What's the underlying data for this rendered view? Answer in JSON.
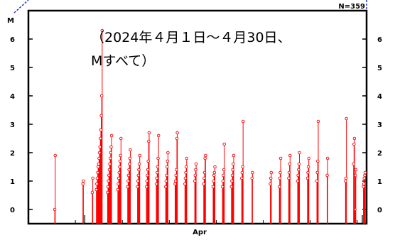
{
  "chart_data": {
    "type": "scatter",
    "style": "stem",
    "title": "",
    "annotation_lines": [
      "（2024年４月１日～４月30日、",
      "Mすべて）"
    ],
    "ylabel": "M",
    "count_label": "N=359",
    "ylim": [
      -0.5,
      7.0
    ],
    "yticks": [
      "0",
      "1",
      "2",
      "3",
      "4",
      "5",
      "6"
    ],
    "x_tick_label": "Apr",
    "xlim": [
      "2024-03-26",
      "2024-05-01"
    ],
    "grid": false,
    "series": [
      {
        "color": "#ff0000",
        "points": [
          [
            "2024-03-28",
            1.9
          ],
          [
            "2024-03-28",
            0.0
          ],
          [
            "2024-03-31",
            1.0
          ],
          [
            "2024-03-31",
            0.9
          ],
          [
            "2024-04-01",
            1.1
          ],
          [
            "2024-04-01",
            0.6
          ],
          [
            "2024-04-02",
            6.3
          ],
          [
            "2024-04-02",
            4.0
          ],
          [
            "2024-04-02",
            3.3
          ],
          [
            "2024-04-02",
            2.8
          ],
          [
            "2024-04-02",
            2.5
          ],
          [
            "2024-04-02",
            2.2
          ],
          [
            "2024-04-02",
            2.0
          ],
          [
            "2024-04-02",
            1.8
          ],
          [
            "2024-04-02",
            1.6
          ],
          [
            "2024-04-02",
            1.5
          ],
          [
            "2024-04-02",
            1.3
          ],
          [
            "2024-04-02",
            1.1
          ],
          [
            "2024-04-02",
            0.9
          ],
          [
            "2024-04-02",
            0.7
          ],
          [
            "2024-04-03",
            2.6
          ],
          [
            "2024-04-03",
            2.2
          ],
          [
            "2024-04-03",
            2.0
          ],
          [
            "2024-04-03",
            1.8
          ],
          [
            "2024-04-03",
            1.6
          ],
          [
            "2024-04-03",
            1.4
          ],
          [
            "2024-04-03",
            1.2
          ],
          [
            "2024-04-03",
            1.0
          ],
          [
            "2024-04-03",
            0.8
          ],
          [
            "2024-04-03",
            0.6
          ],
          [
            "2024-04-04",
            2.5
          ],
          [
            "2024-04-04",
            1.9
          ],
          [
            "2024-04-04",
            1.7
          ],
          [
            "2024-04-04",
            1.5
          ],
          [
            "2024-04-04",
            1.3
          ],
          [
            "2024-04-04",
            1.1
          ],
          [
            "2024-04-04",
            0.9
          ],
          [
            "2024-04-04",
            0.7
          ],
          [
            "2024-04-05",
            2.1
          ],
          [
            "2024-04-05",
            1.8
          ],
          [
            "2024-04-05",
            1.6
          ],
          [
            "2024-04-05",
            1.4
          ],
          [
            "2024-04-05",
            1.2
          ],
          [
            "2024-04-05",
            1.0
          ],
          [
            "2024-04-05",
            0.8
          ],
          [
            "2024-04-06",
            1.9
          ],
          [
            "2024-04-06",
            1.6
          ],
          [
            "2024-04-06",
            1.4
          ],
          [
            "2024-04-06",
            1.2
          ],
          [
            "2024-04-06",
            1.0
          ],
          [
            "2024-04-06",
            0.8
          ],
          [
            "2024-04-07",
            2.7
          ],
          [
            "2024-04-07",
            2.4
          ],
          [
            "2024-04-07",
            1.7
          ],
          [
            "2024-04-07",
            1.4
          ],
          [
            "2024-04-07",
            1.2
          ],
          [
            "2024-04-07",
            1.0
          ],
          [
            "2024-04-07",
            0.8
          ],
          [
            "2024-04-08",
            2.6
          ],
          [
            "2024-04-08",
            1.8
          ],
          [
            "2024-04-08",
            1.5
          ],
          [
            "2024-04-08",
            1.3
          ],
          [
            "2024-04-08",
            1.1
          ],
          [
            "2024-04-08",
            0.9
          ],
          [
            "2024-04-09",
            2.0
          ],
          [
            "2024-04-09",
            1.7
          ],
          [
            "2024-04-09",
            1.5
          ],
          [
            "2024-04-09",
            1.2
          ],
          [
            "2024-04-09",
            1.0
          ],
          [
            "2024-04-09",
            0.8
          ],
          [
            "2024-04-10",
            2.7
          ],
          [
            "2024-04-10",
            2.5
          ],
          [
            "2024-04-10",
            1.4
          ],
          [
            "2024-04-10",
            1.2
          ],
          [
            "2024-04-10",
            1.0
          ],
          [
            "2024-04-10",
            0.9
          ],
          [
            "2024-04-11",
            1.8
          ],
          [
            "2024-04-11",
            1.5
          ],
          [
            "2024-04-11",
            1.3
          ],
          [
            "2024-04-11",
            1.1
          ],
          [
            "2024-04-11",
            0.9
          ],
          [
            "2024-04-12",
            1.6
          ],
          [
            "2024-04-12",
            1.4
          ],
          [
            "2024-04-12",
            1.2
          ],
          [
            "2024-04-12",
            1.0
          ],
          [
            "2024-04-13",
            1.9
          ],
          [
            "2024-04-13",
            1.8
          ],
          [
            "2024-04-13",
            1.3
          ],
          [
            "2024-04-13",
            1.1
          ],
          [
            "2024-04-13",
            0.9
          ],
          [
            "2024-04-14",
            1.5
          ],
          [
            "2024-04-14",
            1.3
          ],
          [
            "2024-04-14",
            1.2
          ],
          [
            "2024-04-14",
            1.0
          ],
          [
            "2024-04-14",
            0.8
          ],
          [
            "2024-04-15",
            2.3
          ],
          [
            "2024-04-15",
            1.4
          ],
          [
            "2024-04-15",
            1.2
          ],
          [
            "2024-04-15",
            1.0
          ],
          [
            "2024-04-15",
            0.8
          ],
          [
            "2024-04-16",
            1.9
          ],
          [
            "2024-04-16",
            1.6
          ],
          [
            "2024-04-16",
            1.4
          ],
          [
            "2024-04-16",
            1.2
          ],
          [
            "2024-04-16",
            1.0
          ],
          [
            "2024-04-16",
            0.8
          ],
          [
            "2024-04-17",
            3.1
          ],
          [
            "2024-04-17",
            1.5
          ],
          [
            "2024-04-17",
            1.3
          ],
          [
            "2024-04-17",
            1.1
          ],
          [
            "2024-04-18",
            1.3
          ],
          [
            "2024-04-18",
            1.1
          ],
          [
            "2024-04-20",
            1.3
          ],
          [
            "2024-04-20",
            1.1
          ],
          [
            "2024-04-20",
            0.9
          ],
          [
            "2024-04-21",
            1.8
          ],
          [
            "2024-04-21",
            1.3
          ],
          [
            "2024-04-21",
            1.1
          ],
          [
            "2024-04-21",
            0.8
          ],
          [
            "2024-04-22",
            1.9
          ],
          [
            "2024-04-22",
            1.6
          ],
          [
            "2024-04-22",
            1.3
          ],
          [
            "2024-04-22",
            1.1
          ],
          [
            "2024-04-23",
            2.0
          ],
          [
            "2024-04-23",
            1.6
          ],
          [
            "2024-04-23",
            1.4
          ],
          [
            "2024-04-23",
            1.2
          ],
          [
            "2024-04-23",
            1.0
          ],
          [
            "2024-04-24",
            1.8
          ],
          [
            "2024-04-24",
            1.5
          ],
          [
            "2024-04-24",
            1.3
          ],
          [
            "2024-04-24",
            1.1
          ],
          [
            "2024-04-25",
            3.1
          ],
          [
            "2024-04-25",
            1.7
          ],
          [
            "2024-04-25",
            1.3
          ],
          [
            "2024-04-25",
            1.0
          ],
          [
            "2024-04-26",
            1.8
          ],
          [
            "2024-04-26",
            1.2
          ],
          [
            "2024-04-28",
            3.2
          ],
          [
            "2024-04-28",
            1.1
          ],
          [
            "2024-04-28",
            1.0
          ],
          [
            "2024-04-29",
            1.4
          ],
          [
            "2024-04-29",
            1.2
          ],
          [
            "2024-04-29",
            0.0
          ],
          [
            "2024-04-29",
            2.5
          ],
          [
            "2024-04-29",
            2.3
          ],
          [
            "2024-04-29",
            1.6
          ],
          [
            "2024-04-30",
            1.3
          ],
          [
            "2024-04-30",
            1.2
          ],
          [
            "2024-04-30",
            1.1
          ],
          [
            "2024-04-30",
            0.9
          ],
          [
            "2024-04-30",
            0.8
          ]
        ]
      }
    ]
  }
}
